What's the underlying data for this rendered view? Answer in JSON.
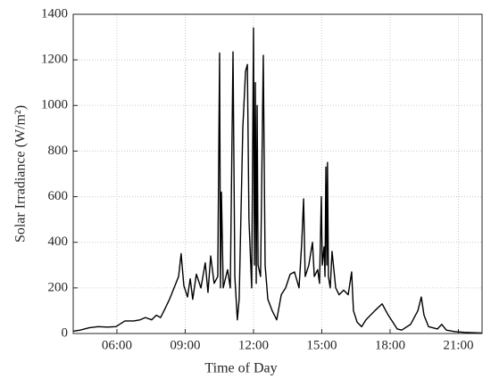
{
  "chart_data": {
    "type": "line",
    "xlabel": "Time of Day",
    "ylabel": "Solar Irradiance (W/m²)",
    "x": [
      4.08,
      4.39,
      4.78,
      5.18,
      5.57,
      5.96,
      6.35,
      6.75,
      7.02,
      7.25,
      7.53,
      7.73,
      7.92,
      8.12,
      8.31,
      8.51,
      8.71,
      8.82,
      8.94,
      9.1,
      9.22,
      9.33,
      9.49,
      9.69,
      9.88,
      10.0,
      10.12,
      10.27,
      10.43,
      10.51,
      10.55,
      10.59,
      10.67,
      10.86,
      10.98,
      11.1,
      11.18,
      11.29,
      11.37,
      11.53,
      11.65,
      11.73,
      11.8,
      11.92,
      12.0,
      12.04,
      12.08,
      12.12,
      12.16,
      12.2,
      12.31,
      12.43,
      12.51,
      12.63,
      12.82,
      13.02,
      13.22,
      13.41,
      13.61,
      13.8,
      14.0,
      14.12,
      14.2,
      14.27,
      14.43,
      14.59,
      14.67,
      14.82,
      14.9,
      14.98,
      15.02,
      15.1,
      15.14,
      15.18,
      15.22,
      15.25,
      15.29,
      15.37,
      15.45,
      15.61,
      15.76,
      15.96,
      16.16,
      16.31,
      16.39,
      16.55,
      16.75,
      16.94,
      17.33,
      17.65,
      17.92,
      18.12,
      18.31,
      18.51,
      18.9,
      19.22,
      19.37,
      19.49,
      19.69,
      20.08,
      20.27,
      20.47,
      20.86,
      21.25,
      22.04
    ],
    "series": [
      {
        "color": "#000000",
        "values": [
          10,
          15,
          25,
          30,
          28,
          30,
          55,
          55,
          60,
          70,
          60,
          80,
          70,
          110,
          150,
          200,
          250,
          350,
          210,
          160,
          240,
          150,
          260,
          200,
          310,
          180,
          340,
          220,
          250,
          1230,
          200,
          620,
          200,
          280,
          200,
          1235,
          250,
          60,
          150,
          900,
          1150,
          1180,
          500,
          200,
          1340,
          300,
          1100,
          220,
          1000,
          300,
          250,
          1220,
          300,
          150,
          100,
          60,
          170,
          200,
          260,
          270,
          200,
          400,
          590,
          250,
          300,
          400,
          250,
          280,
          220,
          600,
          300,
          380,
          250,
          730,
          300,
          750,
          250,
          200,
          360,
          200,
          170,
          190,
          170,
          270,
          100,
          50,
          30,
          60,
          100,
          130,
          80,
          50,
          20,
          15,
          40,
          100,
          160,
          80,
          30,
          20,
          40,
          15,
          8,
          5,
          2
        ]
      }
    ],
    "xlim": [
      4.08,
      22.04
    ],
    "xticks": [
      {
        "value": 6,
        "label": "06:00"
      },
      {
        "value": 9,
        "label": "09:00"
      },
      {
        "value": 12,
        "label": "12:00"
      },
      {
        "value": 15,
        "label": "15:00"
      },
      {
        "value": 18,
        "label": "18:00"
      },
      {
        "value": 21,
        "label": "21:00"
      }
    ],
    "ylim": [
      0,
      1400
    ],
    "yticks": [
      0,
      200,
      400,
      600,
      800,
      1000,
      1200,
      1400
    ],
    "grid": true
  }
}
